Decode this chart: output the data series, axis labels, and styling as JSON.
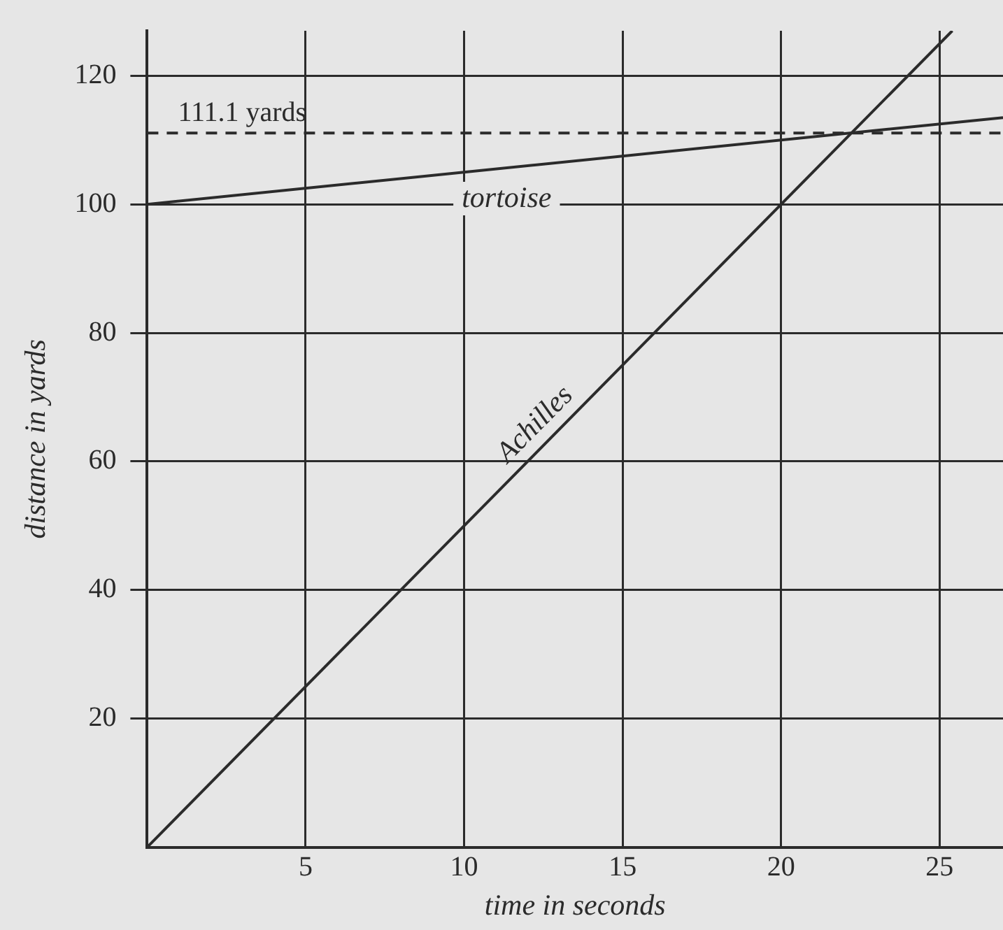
{
  "chart_data": {
    "type": "line",
    "xlabel": "time in seconds",
    "ylabel": "distance in yards",
    "xlim": [
      0,
      27
    ],
    "ylim": [
      0,
      127
    ],
    "xticks": [
      5,
      10,
      15,
      20,
      25
    ],
    "yticks": [
      20,
      40,
      60,
      80,
      100,
      120
    ],
    "series": [
      {
        "name": "Achilles",
        "color": "#2b2b2b",
        "x": [
          0,
          25.4
        ],
        "values": [
          0,
          127
        ]
      },
      {
        "name": "tortoise",
        "color": "#2b2b2b",
        "x": [
          0,
          27
        ],
        "values": [
          100,
          113.5
        ]
      }
    ],
    "ref_lines": [
      {
        "axis": "y",
        "value": 111.1,
        "label": "111.1 yards",
        "line_style": "dashed",
        "color": "#2b2b2b"
      }
    ],
    "grid": true,
    "legend": false,
    "marker": "none",
    "line_style": "solid"
  }
}
